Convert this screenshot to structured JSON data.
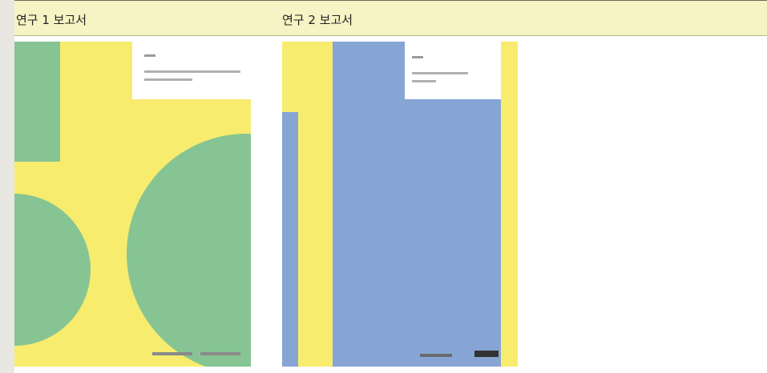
{
  "table": {
    "headers": [
      "연구 1 보고서",
      "연구 2 보고서"
    ]
  }
}
